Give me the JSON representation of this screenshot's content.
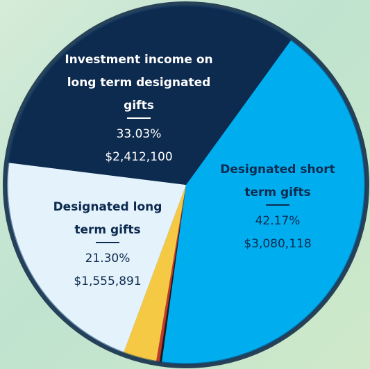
{
  "chart_data": {
    "type": "pie",
    "categories": [
      "Designated short term gifts",
      null,
      null,
      null,
      "Designated long term gifts",
      "Investment income on long term designated gifts"
    ],
    "values": [
      42.17,
      0.2,
      0.3,
      3.0,
      21.3,
      33.03
    ],
    "value_labels": [
      "42.17%",
      null,
      null,
      null,
      "21.30%",
      "33.03%"
    ],
    "amounts": [
      3080118,
      null,
      null,
      null,
      1555891,
      2412100
    ],
    "amount_labels": [
      "$3,080,118",
      null,
      null,
      null,
      "$1,555,891",
      "$2,412,100"
    ],
    "colors": [
      "#00aeef",
      "#1b1b1b",
      "#c0392b",
      "#f6c945",
      "#e4f2fb",
      "#0d2a4f"
    ]
  }
}
